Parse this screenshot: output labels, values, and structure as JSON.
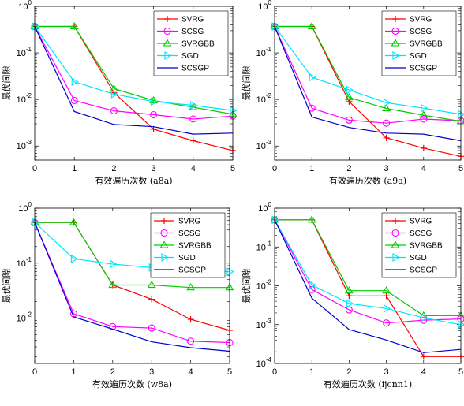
{
  "series_styles": [
    {
      "name": "SVRG",
      "color": "#FF0000",
      "marker": "plus"
    },
    {
      "name": "SCSG",
      "color": "#FF00FF",
      "marker": "circle"
    },
    {
      "name": "SVRGBB",
      "color": "#00CC00",
      "marker": "triangle-up"
    },
    {
      "name": "SGD",
      "color": "#00E5FF",
      "marker": "triangle-right"
    },
    {
      "name": "SCSGP",
      "color": "#0000CC",
      "marker": "none"
    }
  ],
  "chart_data": [
    {
      "type": "line",
      "xlabel": "有效遍历次数 (a8a)",
      "ylabel": "最优间隙",
      "yscale": "log",
      "xlim": [
        0,
        5
      ],
      "ylim": [
        0.0005,
        1
      ],
      "xticks": [
        "0",
        "1",
        "2",
        "3",
        "4",
        "5"
      ],
      "yticks": [
        {
          "v": 0.001,
          "exp": "-3"
        },
        {
          "v": 0.01,
          "exp": "-2"
        },
        {
          "v": 0.1,
          "exp": "-1"
        },
        {
          "v": 1,
          "exp": "0"
        }
      ],
      "legend": "top-right",
      "x": [
        0,
        1,
        2,
        3,
        4,
        5
      ],
      "series": [
        {
          "name": "SVRG",
          "values": [
            0.37,
            0.37,
            0.014,
            0.0023,
            0.0013,
            0.0008
          ]
        },
        {
          "name": "SCSG",
          "values": [
            0.37,
            0.0095,
            0.0057,
            0.0047,
            0.0038,
            0.0044
          ]
        },
        {
          "name": "SVRGBB",
          "values": [
            0.37,
            0.37,
            0.017,
            0.0095,
            0.0068,
            0.0048
          ]
        },
        {
          "name": "SGD",
          "values": [
            0.37,
            0.024,
            0.013,
            0.009,
            0.0075,
            0.0058
          ]
        },
        {
          "name": "SCSGP",
          "values": [
            0.37,
            0.0055,
            0.0029,
            0.0026,
            0.0018,
            0.0019
          ]
        }
      ]
    },
    {
      "type": "line",
      "xlabel": "有效遍历次数 (a9a)",
      "ylabel": "最优间隙",
      "yscale": "log",
      "xlim": [
        0,
        5
      ],
      "ylim": [
        0.0005,
        1
      ],
      "xticks": [
        "0",
        "1",
        "2",
        "3",
        "4",
        "5"
      ],
      "yticks": [
        {
          "v": 0.001,
          "exp": "-3"
        },
        {
          "v": 0.01,
          "exp": "-2"
        },
        {
          "v": 0.1,
          "exp": "-1"
        },
        {
          "v": 1,
          "exp": "0"
        }
      ],
      "legend": "top-right",
      "x": [
        0,
        1,
        2,
        3,
        4,
        5
      ],
      "series": [
        {
          "name": "SVRG",
          "values": [
            0.37,
            0.37,
            0.009,
            0.0015,
            0.0009,
            0.0006
          ]
        },
        {
          "name": "SCSG",
          "values": [
            0.37,
            0.0065,
            0.0036,
            0.0031,
            0.0038,
            0.0035
          ]
        },
        {
          "name": "SVRGBB",
          "values": [
            0.37,
            0.37,
            0.011,
            0.0064,
            0.0046,
            0.0034
          ]
        },
        {
          "name": "SGD",
          "values": [
            0.37,
            0.03,
            0.016,
            0.0085,
            0.0065,
            0.0048
          ]
        },
        {
          "name": "SCSGP",
          "values": [
            0.37,
            0.0042,
            0.0025,
            0.0019,
            0.0018,
            0.0013
          ]
        }
      ]
    },
    {
      "type": "line",
      "xlabel": "有效遍历次数 (w8a)",
      "ylabel": "最优间隙",
      "yscale": "log",
      "xlim": [
        0,
        5
      ],
      "ylim": [
        0.0015,
        1
      ],
      "xticks": [
        "0",
        "1",
        "2",
        "3",
        "4",
        "5"
      ],
      "yticks": [
        {
          "v": 0.01,
          "exp": "-2"
        },
        {
          "v": 0.1,
          "exp": "-1"
        },
        {
          "v": 1,
          "exp": "0"
        }
      ],
      "legend": "top-right",
      "x": [
        0,
        1,
        2,
        3,
        4,
        5
      ],
      "series": [
        {
          "name": "SVRG",
          "values": [
            0.55,
            0.55,
            0.04,
            0.022,
            0.0095,
            0.006
          ]
        },
        {
          "name": "SCSG",
          "values": [
            0.55,
            0.012,
            0.007,
            0.0066,
            0.0038,
            0.0036
          ]
        },
        {
          "name": "SVRGBB",
          "values": [
            0.55,
            0.55,
            0.04,
            0.04,
            0.036,
            0.036
          ]
        },
        {
          "name": "SGD",
          "values": [
            0.55,
            0.12,
            0.096,
            0.083,
            0.076,
            0.07
          ]
        },
        {
          "name": "SCSGP",
          "values": [
            0.55,
            0.0105,
            0.0063,
            0.0037,
            0.0029,
            0.0025
          ]
        }
      ]
    },
    {
      "type": "line",
      "xlabel": "有效遍历次数 (ijcnn1)",
      "ylabel": "最优间隙",
      "yscale": "log",
      "xlim": [
        0,
        5
      ],
      "ylim": [
        0.0001,
        1
      ],
      "xticks": [
        "0",
        "1",
        "2",
        "3",
        "4",
        "5"
      ],
      "yticks": [
        {
          "v": 0.0001,
          "exp": "-4"
        },
        {
          "v": 0.001,
          "exp": "-3"
        },
        {
          "v": 0.01,
          "exp": "-2"
        },
        {
          "v": 0.1,
          "exp": "-1"
        },
        {
          "v": 1,
          "exp": "0"
        }
      ],
      "legend": "top-right",
      "x": [
        0,
        1,
        2,
        3,
        4,
        5
      ],
      "series": [
        {
          "name": "SVRG",
          "values": [
            0.5,
            0.5,
            0.0055,
            0.0055,
            0.00015,
            0.00015
          ]
        },
        {
          "name": "SCSG",
          "values": [
            0.5,
            0.008,
            0.0024,
            0.0011,
            0.0013,
            0.0014
          ]
        },
        {
          "name": "SVRGBB",
          "values": [
            0.5,
            0.5,
            0.0075,
            0.0075,
            0.0017,
            0.0017
          ]
        },
        {
          "name": "SGD",
          "values": [
            0.5,
            0.0105,
            0.0035,
            0.0026,
            0.0015,
            0.001
          ]
        },
        {
          "name": "SCSGP",
          "values": [
            0.5,
            0.0048,
            0.00075,
            0.0004,
            0.00019,
            0.00023
          ]
        }
      ]
    }
  ]
}
